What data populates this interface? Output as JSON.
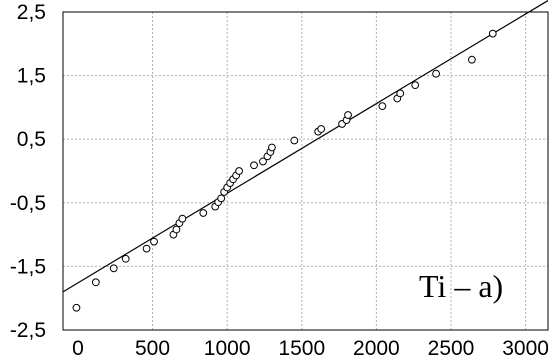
{
  "chart_data": {
    "type": "scatter",
    "title": "",
    "xlabel": "",
    "ylabel": "",
    "xlim": [
      -100,
      3150
    ],
    "ylim": [
      -2.5,
      2.5
    ],
    "x_ticks": [
      0,
      500,
      1000,
      1500,
      2000,
      2500,
      3000
    ],
    "y_ticks": [
      2.5,
      1.5,
      0.5,
      -0.5,
      -1.5,
      -2.5
    ],
    "x_tick_labels": [
      "0",
      "500",
      "1000",
      "1500",
      "2000",
      "2500",
      "3000"
    ],
    "y_tick_labels": [
      "2,5",
      "1,5",
      "0,5",
      "-0,5",
      "-1,5",
      "-2,5"
    ],
    "grid": true,
    "annotation": "Ti – a)",
    "fit_line": {
      "x": [
        -100,
        3150
      ],
      "y": [
        -1.9,
        2.68
      ]
    },
    "series": [
      {
        "x": [
          -10,
          120,
          240,
          320,
          460,
          510,
          640,
          660,
          680,
          700,
          840,
          920,
          940,
          960,
          980,
          1000,
          1020,
          1040,
          1060,
          1080,
          1180,
          1240,
          1270,
          1290,
          1300,
          1450,
          1610,
          1630,
          1770,
          1800,
          1810,
          2040,
          2140,
          2160,
          2260,
          2400,
          2640,
          2780
        ],
        "y": [
          -2.15,
          -1.75,
          -1.53,
          -1.38,
          -1.22,
          -1.11,
          -1.0,
          -0.92,
          -0.82,
          -0.75,
          -0.66,
          -0.56,
          -0.49,
          -0.43,
          -0.33,
          -0.26,
          -0.19,
          -0.13,
          -0.07,
          0.0,
          0.09,
          0.15,
          0.23,
          0.3,
          0.37,
          0.48,
          0.62,
          0.66,
          0.74,
          0.8,
          0.88,
          1.02,
          1.14,
          1.22,
          1.35,
          1.53,
          1.75,
          2.16
        ]
      }
    ]
  }
}
